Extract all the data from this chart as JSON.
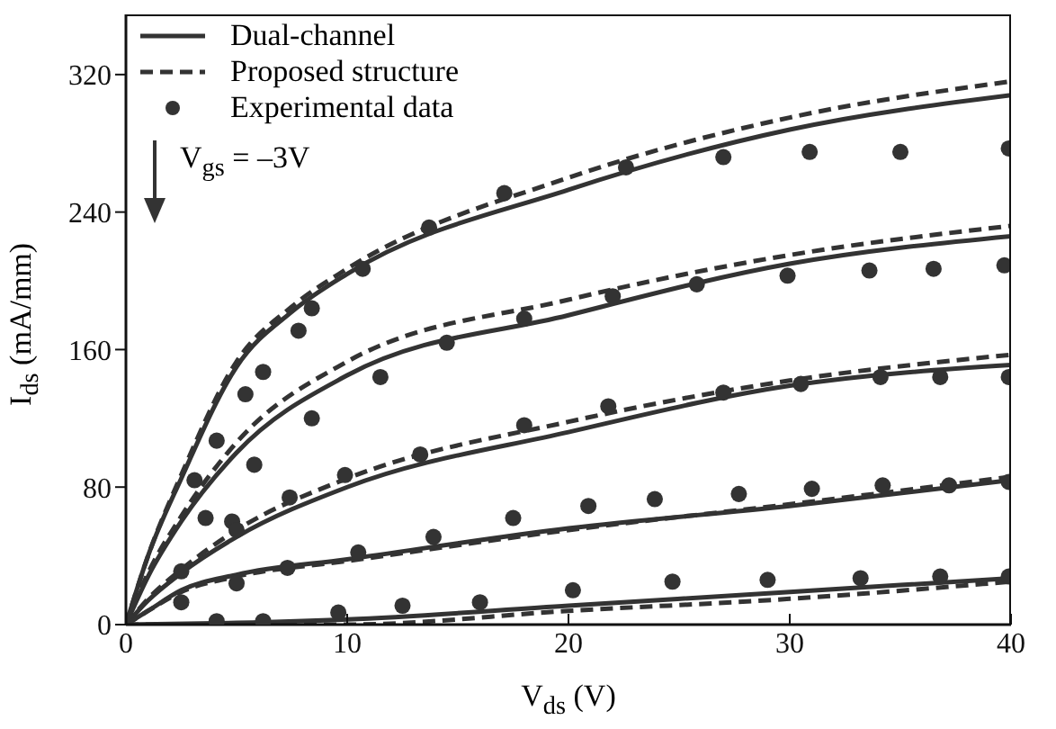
{
  "chart_data": {
    "type": "line",
    "xlabel": "V$_{ds}$ (V)",
    "ylabel": "I$_{ds}$ (mA/mm)",
    "xlim": [
      0,
      40
    ],
    "xticks": [
      0,
      10,
      20,
      30,
      40
    ],
    "ylim": [
      0,
      355
    ],
    "yticks": [
      0,
      80,
      160,
      240,
      320
    ],
    "grid": false,
    "legend": "top left",
    "annotations": [
      "V$_{gs}$ = –3V"
    ],
    "series": [
      {
        "name": "Dual-channel",
        "line_style": "solid",
        "marker": "none",
        "color": "#333333",
        "x": [
          0,
          1,
          2.5,
          5,
          7.5,
          10,
          20,
          30,
          40
        ],
        "values": [
          0,
          40,
          85,
          150,
          182,
          204,
          253,
          288,
          308
        ]
      },
      {
        "type": "line",
        "line_style": "solid",
        "marker": "none",
        "color": "#333333",
        "x": [
          0,
          1,
          2.5,
          5,
          10,
          20,
          30,
          40
        ],
        "values": [
          0,
          28,
          60,
          100,
          145,
          180,
          210,
          226
        ]
      },
      {
        "type": "line",
        "line_style": "solid",
        "marker": "none",
        "color": "#333333",
        "x": [
          0,
          1,
          2.5,
          5,
          10,
          20,
          30,
          40
        ],
        "values": [
          0,
          14,
          30,
          51,
          80,
          112,
          139,
          151
        ]
      },
      {
        "type": "line",
        "line_style": "solid",
        "marker": "none",
        "color": "#333333",
        "x": [
          0,
          1,
          2.5,
          5,
          10,
          20,
          30,
          40
        ],
        "values": [
          0,
          8,
          20,
          29,
          38,
          56,
          69,
          84
        ]
      },
      {
        "type": "line",
        "line_style": "solid",
        "marker": "none",
        "color": "#333333",
        "x": [
          0,
          5,
          10,
          20,
          30,
          40
        ],
        "values": [
          0,
          1,
          3,
          11,
          19,
          27
        ]
      },
      {
        "name": "Proposed structure",
        "line_style": "dashed",
        "marker": "none",
        "color": "#333333",
        "x": [
          0,
          1,
          2.5,
          5,
          7.5,
          10,
          20,
          30,
          40
        ],
        "values": [
          0,
          40,
          87,
          153,
          185,
          207,
          260,
          295,
          316
        ]
      },
      {
        "type": "line",
        "line_style": "dashed",
        "marker": "none",
        "color": "#333333",
        "x": [
          0,
          1,
          2.5,
          5,
          10,
          20,
          30,
          40
        ],
        "values": [
          0,
          30,
          63,
          106,
          153,
          189,
          215,
          232
        ]
      },
      {
        "type": "line",
        "line_style": "dashed",
        "marker": "none",
        "color": "#333333",
        "x": [
          0,
          1,
          2.5,
          5,
          10,
          20,
          30,
          40
        ],
        "values": [
          0,
          15,
          32,
          55,
          85,
          118,
          142,
          157
        ]
      },
      {
        "type": "line",
        "line_style": "dashed",
        "marker": "none",
        "color": "#333333",
        "x": [
          0,
          1,
          2.5,
          5,
          10,
          20,
          30,
          40
        ],
        "values": [
          0,
          8,
          19,
          28,
          37,
          55,
          70,
          86
        ]
      },
      {
        "type": "line",
        "line_style": "dashed",
        "marker": "none",
        "color": "#333333",
        "x": [
          0,
          5,
          10,
          20,
          30,
          40
        ],
        "values": [
          0,
          0,
          0,
          8,
          15,
          25
        ]
      },
      {
        "name": "Experimental data",
        "type": "scatter",
        "marker": "circle",
        "color": "#333333",
        "x": [
          3.1,
          4.1,
          5.4,
          6.2,
          7.8,
          8.4,
          10.7,
          13.7,
          17.1,
          22.6,
          27,
          30.9,
          35,
          39.9
        ],
        "values": [
          84,
          107,
          134,
          147,
          171,
          184,
          207,
          231,
          251,
          266,
          272,
          275,
          275,
          277
        ]
      },
      {
        "type": "scatter",
        "marker": "circle",
        "color": "#333333",
        "x": [
          2.5,
          4.8,
          5.8,
          8.4,
          11.5,
          14.5,
          18,
          22,
          25.8,
          29.9,
          33.6,
          36.5,
          39.7
        ],
        "values": [
          31,
          60,
          93,
          120,
          144,
          164,
          178,
          191,
          198,
          203,
          206,
          207,
          209
        ]
      },
      {
        "type": "scatter",
        "marker": "circle",
        "color": "#333333",
        "x": [
          3.6,
          5,
          7.4,
          9.9,
          13.3,
          18,
          21.8,
          27,
          30.5,
          34.1,
          36.8,
          39.9
        ],
        "values": [
          62,
          55,
          74,
          87,
          99,
          116,
          127,
          135,
          140,
          144,
          144,
          144
        ]
      },
      {
        "type": "scatter",
        "marker": "circle",
        "color": "#333333",
        "x": [
          2.5,
          5,
          7.3,
          10.5,
          13.9,
          17.5,
          20.9,
          23.9,
          27.7,
          31,
          34.2,
          37.2,
          39.9
        ],
        "values": [
          13,
          24,
          33,
          42,
          51,
          62,
          69,
          73,
          76,
          79,
          81,
          81,
          83
        ]
      },
      {
        "type": "scatter",
        "marker": "circle",
        "color": "#333333",
        "x": [
          4.1,
          6.2,
          9.6,
          12.5,
          16,
          20.2,
          24.7,
          29,
          33.2,
          36.8,
          39.9
        ],
        "values": [
          2,
          2,
          7,
          11,
          13,
          20,
          25,
          26,
          27,
          28,
          28
        ]
      }
    ]
  }
}
